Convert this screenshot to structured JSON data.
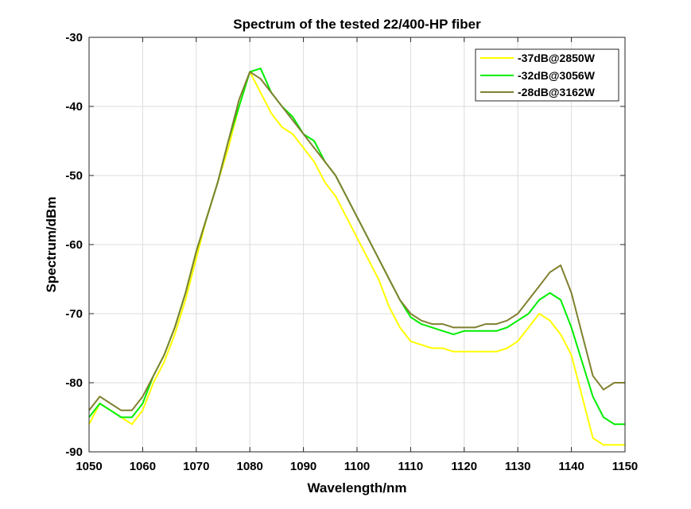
{
  "chart_data": {
    "type": "line",
    "title": "Spectrum of the tested 22/400-HP fiber",
    "xlabel": "Wavelength/nm",
    "ylabel": "Spectrum/dBm",
    "xlim": [
      1050,
      1150
    ],
    "ylim": [
      -90,
      -30
    ],
    "xticks": [
      1050,
      1060,
      1070,
      1080,
      1090,
      1100,
      1110,
      1120,
      1130,
      1140,
      1150
    ],
    "yticks": [
      -90,
      -80,
      -70,
      -60,
      -50,
      -40,
      -30
    ],
    "xtick_labels": [
      "1050",
      "1060",
      "1070",
      "1080",
      "1090",
      "1100",
      "1110",
      "1120",
      "1130",
      "1140",
      "1150"
    ],
    "ytick_labels": [
      "-90",
      "-80",
      "-70",
      "-60",
      "-50",
      "-40",
      "-30"
    ],
    "grid": true,
    "legend_position": "top-right",
    "series": [
      {
        "name": "-37dB@2850W",
        "color": "#ffff00",
        "x": [
          1050,
          1052,
          1054,
          1056,
          1058,
          1060,
          1062,
          1064,
          1066,
          1068,
          1070,
          1072,
          1074,
          1076,
          1078,
          1080,
          1082,
          1084,
          1086,
          1088,
          1090,
          1092,
          1094,
          1096,
          1098,
          1100,
          1102,
          1104,
          1106,
          1108,
          1110,
          1112,
          1114,
          1116,
          1118,
          1120,
          1122,
          1124,
          1126,
          1128,
          1130,
          1132,
          1134,
          1136,
          1138,
          1140,
          1142,
          1144,
          1146,
          1148,
          1150
        ],
        "y": [
          -86,
          -83,
          -84,
          -85,
          -86,
          -84,
          -80,
          -77,
          -73,
          -68,
          -62,
          -56,
          -51,
          -46,
          -40,
          -35,
          -38,
          -41,
          -43,
          -44,
          -46,
          -48,
          -51,
          -53,
          -56,
          -59,
          -62,
          -65,
          -69,
          -72,
          -74,
          -74.5,
          -75,
          -75,
          -75.5,
          -75.5,
          -75.5,
          -75.5,
          -75.5,
          -75,
          -74,
          -72,
          -70,
          -71,
          -73,
          -76,
          -82,
          -88,
          -89,
          -89,
          -89
        ]
      },
      {
        "name": "-32dB@3056W",
        "color": "#00ee00",
        "x": [
          1050,
          1052,
          1054,
          1056,
          1058,
          1060,
          1062,
          1064,
          1066,
          1068,
          1070,
          1072,
          1074,
          1076,
          1078,
          1080,
          1082,
          1084,
          1086,
          1088,
          1090,
          1092,
          1094,
          1096,
          1098,
          1100,
          1102,
          1104,
          1106,
          1108,
          1110,
          1112,
          1114,
          1116,
          1118,
          1120,
          1122,
          1124,
          1126,
          1128,
          1130,
          1132,
          1134,
          1136,
          1138,
          1140,
          1142,
          1144,
          1146,
          1148,
          1150
        ],
        "y": [
          -85,
          -83,
          -84,
          -85,
          -85,
          -83,
          -79,
          -76,
          -72,
          -67,
          -61,
          -56,
          -51,
          -45,
          -40,
          -35,
          -34.5,
          -38,
          -40,
          -41.5,
          -44,
          -45,
          -48,
          -50,
          -53,
          -56,
          -59,
          -62,
          -65,
          -68,
          -70.5,
          -71.5,
          -72,
          -72.5,
          -73,
          -72.5,
          -72.5,
          -72.5,
          -72.5,
          -72,
          -71,
          -70,
          -68,
          -67,
          -68,
          -72,
          -77,
          -82,
          -85,
          -86,
          -86
        ]
      },
      {
        "name": "-28dB@3162W",
        "color": "#808030",
        "x": [
          1050,
          1052,
          1054,
          1056,
          1058,
          1060,
          1062,
          1064,
          1066,
          1068,
          1070,
          1072,
          1074,
          1076,
          1078,
          1080,
          1082,
          1084,
          1086,
          1088,
          1090,
          1092,
          1094,
          1096,
          1098,
          1100,
          1102,
          1104,
          1106,
          1108,
          1110,
          1112,
          1114,
          1116,
          1118,
          1120,
          1122,
          1124,
          1126,
          1128,
          1130,
          1132,
          1134,
          1136,
          1138,
          1140,
          1142,
          1144,
          1146,
          1148,
          1150
        ],
        "y": [
          -84,
          -82,
          -83,
          -84,
          -84,
          -82,
          -79,
          -76,
          -72,
          -67,
          -61,
          -56,
          -51,
          -45,
          -39,
          -35,
          -36,
          -38,
          -40,
          -42,
          -44,
          -46,
          -48,
          -50,
          -53,
          -56,
          -59,
          -62,
          -65,
          -68,
          -70,
          -71,
          -71.5,
          -71.5,
          -72,
          -72,
          -72,
          -71.5,
          -71.5,
          -71,
          -70,
          -68,
          -66,
          -64,
          -63,
          -67,
          -73,
          -79,
          -81,
          -80,
          -80
        ]
      }
    ]
  }
}
